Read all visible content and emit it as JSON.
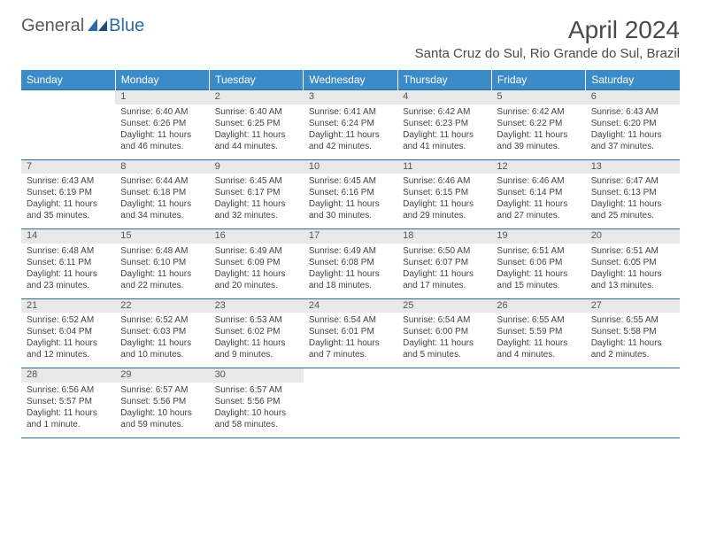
{
  "brand": {
    "general": "General",
    "blue": "Blue"
  },
  "title": "April 2024",
  "location": "Santa Cruz do Sul, Rio Grande do Sul, Brazil",
  "colors": {
    "header_bg": "#3b8bc8",
    "header_text": "#ffffff",
    "border": "#2b6ca3",
    "daynum_bg": "#e8e8e8",
    "body_text": "#444444",
    "title_text": "#4a4a4a"
  },
  "typography": {
    "title_fontsize": 28,
    "location_fontsize": 15,
    "dayheader_fontsize": 12,
    "daynum_fontsize": 11,
    "cell_fontsize": 10
  },
  "day_headers": [
    "Sunday",
    "Monday",
    "Tuesday",
    "Wednesday",
    "Thursday",
    "Friday",
    "Saturday"
  ],
  "weeks": [
    [
      null,
      {
        "n": "1",
        "sr": "Sunrise: 6:40 AM",
        "ss": "Sunset: 6:26 PM",
        "d1": "Daylight: 11 hours",
        "d2": "and 46 minutes."
      },
      {
        "n": "2",
        "sr": "Sunrise: 6:40 AM",
        "ss": "Sunset: 6:25 PM",
        "d1": "Daylight: 11 hours",
        "d2": "and 44 minutes."
      },
      {
        "n": "3",
        "sr": "Sunrise: 6:41 AM",
        "ss": "Sunset: 6:24 PM",
        "d1": "Daylight: 11 hours",
        "d2": "and 42 minutes."
      },
      {
        "n": "4",
        "sr": "Sunrise: 6:42 AM",
        "ss": "Sunset: 6:23 PM",
        "d1": "Daylight: 11 hours",
        "d2": "and 41 minutes."
      },
      {
        "n": "5",
        "sr": "Sunrise: 6:42 AM",
        "ss": "Sunset: 6:22 PM",
        "d1": "Daylight: 11 hours",
        "d2": "and 39 minutes."
      },
      {
        "n": "6",
        "sr": "Sunrise: 6:43 AM",
        "ss": "Sunset: 6:20 PM",
        "d1": "Daylight: 11 hours",
        "d2": "and 37 minutes."
      }
    ],
    [
      {
        "n": "7",
        "sr": "Sunrise: 6:43 AM",
        "ss": "Sunset: 6:19 PM",
        "d1": "Daylight: 11 hours",
        "d2": "and 35 minutes."
      },
      {
        "n": "8",
        "sr": "Sunrise: 6:44 AM",
        "ss": "Sunset: 6:18 PM",
        "d1": "Daylight: 11 hours",
        "d2": "and 34 minutes."
      },
      {
        "n": "9",
        "sr": "Sunrise: 6:45 AM",
        "ss": "Sunset: 6:17 PM",
        "d1": "Daylight: 11 hours",
        "d2": "and 32 minutes."
      },
      {
        "n": "10",
        "sr": "Sunrise: 6:45 AM",
        "ss": "Sunset: 6:16 PM",
        "d1": "Daylight: 11 hours",
        "d2": "and 30 minutes."
      },
      {
        "n": "11",
        "sr": "Sunrise: 6:46 AM",
        "ss": "Sunset: 6:15 PM",
        "d1": "Daylight: 11 hours",
        "d2": "and 29 minutes."
      },
      {
        "n": "12",
        "sr": "Sunrise: 6:46 AM",
        "ss": "Sunset: 6:14 PM",
        "d1": "Daylight: 11 hours",
        "d2": "and 27 minutes."
      },
      {
        "n": "13",
        "sr": "Sunrise: 6:47 AM",
        "ss": "Sunset: 6:13 PM",
        "d1": "Daylight: 11 hours",
        "d2": "and 25 minutes."
      }
    ],
    [
      {
        "n": "14",
        "sr": "Sunrise: 6:48 AM",
        "ss": "Sunset: 6:11 PM",
        "d1": "Daylight: 11 hours",
        "d2": "and 23 minutes."
      },
      {
        "n": "15",
        "sr": "Sunrise: 6:48 AM",
        "ss": "Sunset: 6:10 PM",
        "d1": "Daylight: 11 hours",
        "d2": "and 22 minutes."
      },
      {
        "n": "16",
        "sr": "Sunrise: 6:49 AM",
        "ss": "Sunset: 6:09 PM",
        "d1": "Daylight: 11 hours",
        "d2": "and 20 minutes."
      },
      {
        "n": "17",
        "sr": "Sunrise: 6:49 AM",
        "ss": "Sunset: 6:08 PM",
        "d1": "Daylight: 11 hours",
        "d2": "and 18 minutes."
      },
      {
        "n": "18",
        "sr": "Sunrise: 6:50 AM",
        "ss": "Sunset: 6:07 PM",
        "d1": "Daylight: 11 hours",
        "d2": "and 17 minutes."
      },
      {
        "n": "19",
        "sr": "Sunrise: 6:51 AM",
        "ss": "Sunset: 6:06 PM",
        "d1": "Daylight: 11 hours",
        "d2": "and 15 minutes."
      },
      {
        "n": "20",
        "sr": "Sunrise: 6:51 AM",
        "ss": "Sunset: 6:05 PM",
        "d1": "Daylight: 11 hours",
        "d2": "and 13 minutes."
      }
    ],
    [
      {
        "n": "21",
        "sr": "Sunrise: 6:52 AM",
        "ss": "Sunset: 6:04 PM",
        "d1": "Daylight: 11 hours",
        "d2": "and 12 minutes."
      },
      {
        "n": "22",
        "sr": "Sunrise: 6:52 AM",
        "ss": "Sunset: 6:03 PM",
        "d1": "Daylight: 11 hours",
        "d2": "and 10 minutes."
      },
      {
        "n": "23",
        "sr": "Sunrise: 6:53 AM",
        "ss": "Sunset: 6:02 PM",
        "d1": "Daylight: 11 hours",
        "d2": "and 9 minutes."
      },
      {
        "n": "24",
        "sr": "Sunrise: 6:54 AM",
        "ss": "Sunset: 6:01 PM",
        "d1": "Daylight: 11 hours",
        "d2": "and 7 minutes."
      },
      {
        "n": "25",
        "sr": "Sunrise: 6:54 AM",
        "ss": "Sunset: 6:00 PM",
        "d1": "Daylight: 11 hours",
        "d2": "and 5 minutes."
      },
      {
        "n": "26",
        "sr": "Sunrise: 6:55 AM",
        "ss": "Sunset: 5:59 PM",
        "d1": "Daylight: 11 hours",
        "d2": "and 4 minutes."
      },
      {
        "n": "27",
        "sr": "Sunrise: 6:55 AM",
        "ss": "Sunset: 5:58 PM",
        "d1": "Daylight: 11 hours",
        "d2": "and 2 minutes."
      }
    ],
    [
      {
        "n": "28",
        "sr": "Sunrise: 6:56 AM",
        "ss": "Sunset: 5:57 PM",
        "d1": "Daylight: 11 hours",
        "d2": "and 1 minute."
      },
      {
        "n": "29",
        "sr": "Sunrise: 6:57 AM",
        "ss": "Sunset: 5:56 PM",
        "d1": "Daylight: 10 hours",
        "d2": "and 59 minutes."
      },
      {
        "n": "30",
        "sr": "Sunrise: 6:57 AM",
        "ss": "Sunset: 5:56 PM",
        "d1": "Daylight: 10 hours",
        "d2": "and 58 minutes."
      },
      null,
      null,
      null,
      null
    ]
  ]
}
